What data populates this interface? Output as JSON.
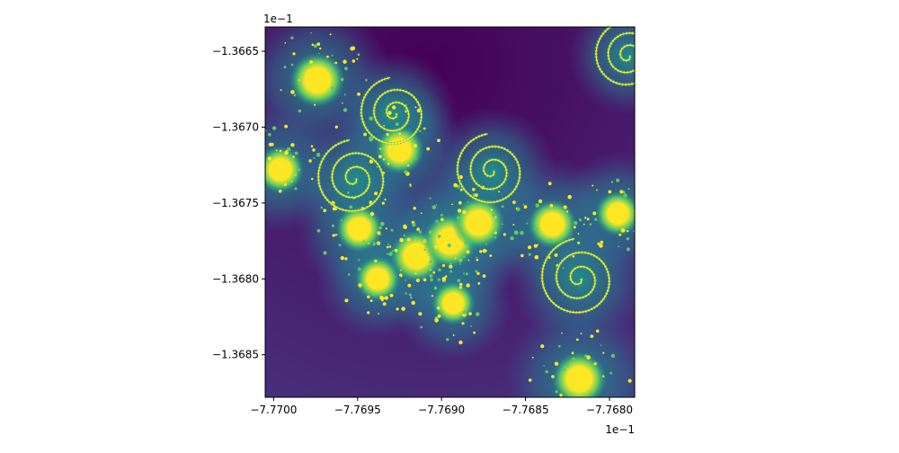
{
  "chart_data": {
    "type": "heatmap",
    "title": "",
    "xlabel": "",
    "ylabel": "",
    "x_offset_label": "1e−1",
    "y_offset_label": "1e−1",
    "xlim": [
      -7.77005,
      -7.76785
    ],
    "ylim": [
      -1.36878,
      -1.36634
    ],
    "x_ticks": [
      {
        "value": -7.77,
        "label": "−7.7700"
      },
      {
        "value": -7.7695,
        "label": "−7.7695"
      },
      {
        "value": -7.769,
        "label": "−7.7690"
      },
      {
        "value": -7.7685,
        "label": "−7.7685"
      },
      {
        "value": -7.768,
        "label": "−7.7680"
      }
    ],
    "y_ticks": [
      {
        "value": -1.3665,
        "label": "−1.3665"
      },
      {
        "value": -1.367,
        "label": "−1.3670"
      },
      {
        "value": -1.3675,
        "label": "−1.3675"
      },
      {
        "value": -1.368,
        "label": "−1.3680"
      },
      {
        "value": -1.3685,
        "label": "−1.3685"
      }
    ],
    "colormap": "viridis",
    "colors": {
      "background_dark": "#440154",
      "mid_purple": "#472f7d",
      "teal": "#21918c",
      "green": "#5ec962",
      "yellow": "#fde725"
    },
    "features": [
      {
        "kind": "bulb",
        "x": -7.76974,
        "y": -1.36669,
        "level": 1.0
      },
      {
        "kind": "bulb",
        "x": -7.76925,
        "y": -1.36715,
        "level": 0.85
      },
      {
        "kind": "bulb",
        "x": -7.76996,
        "y": -1.36728,
        "level": 0.8
      },
      {
        "kind": "bulb",
        "x": -7.76949,
        "y": -1.36767,
        "level": 0.8
      },
      {
        "kind": "bulb",
        "x": -7.76915,
        "y": -1.36785,
        "level": 0.95
      },
      {
        "kind": "bulb",
        "x": -7.76895,
        "y": -1.36775,
        "level": 1.0
      },
      {
        "kind": "bulb",
        "x": -7.76878,
        "y": -1.36763,
        "level": 0.95
      },
      {
        "kind": "bulb",
        "x": -7.76834,
        "y": -1.36764,
        "level": 0.85
      },
      {
        "kind": "bulb",
        "x": -7.76818,
        "y": -1.36866,
        "level": 1.0
      },
      {
        "kind": "bulb",
        "x": -7.76795,
        "y": -1.36757,
        "level": 0.75
      },
      {
        "kind": "bulb",
        "x": -7.76938,
        "y": -1.368,
        "level": 0.75
      },
      {
        "kind": "bulb",
        "x": -7.76893,
        "y": -1.36816,
        "level": 0.7
      },
      {
        "kind": "spiral",
        "x": -7.76952,
        "y": -1.36734,
        "level": 0.85
      },
      {
        "kind": "spiral",
        "x": -7.7687,
        "y": -1.36729,
        "level": 0.8
      },
      {
        "kind": "spiral",
        "x": -7.76818,
        "y": -1.368,
        "level": 0.9
      },
      {
        "kind": "spiral",
        "x": -7.76928,
        "y": -1.36691,
        "level": 0.75
      },
      {
        "kind": "spiral",
        "x": -7.76789,
        "y": -1.36653,
        "level": 0.7
      }
    ]
  }
}
